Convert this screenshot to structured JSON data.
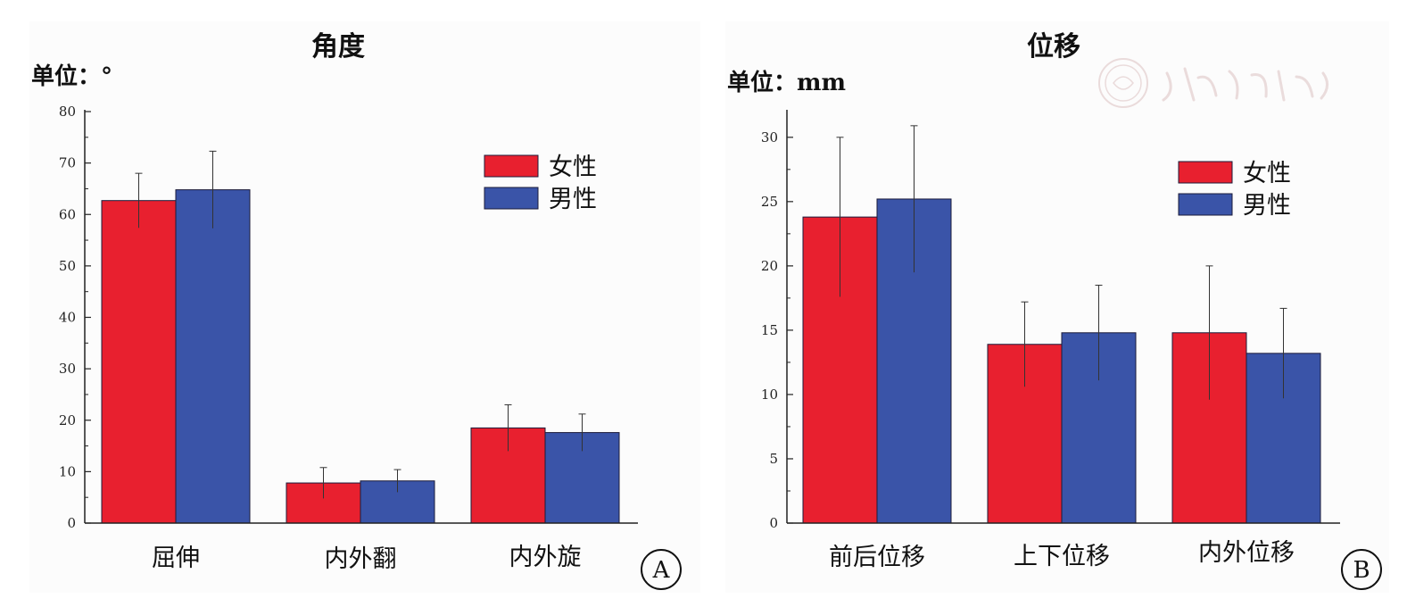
{
  "colors": {
    "female": "#e8202f",
    "male": "#3a54a8",
    "axis": "#222222"
  },
  "chart_data": [
    {
      "type": "bar",
      "title": "角度",
      "unit_label": "单位：°",
      "panel_letter": "A",
      "categories": [
        "屈伸",
        "内外翻",
        "内外旋"
      ],
      "ylim": [
        0,
        80
      ],
      "yticks": [
        0,
        10,
        20,
        30,
        40,
        50,
        60,
        70,
        80
      ],
      "legend_position": "top-right",
      "grid": false,
      "series": [
        {
          "name": "女性",
          "color": "#e8202f",
          "values": [
            62.7,
            7.8,
            18.5
          ],
          "errors": [
            5.3,
            3.0,
            4.5
          ]
        },
        {
          "name": "男性",
          "color": "#3a54a8",
          "values": [
            64.8,
            8.2,
            17.6
          ],
          "errors": [
            7.5,
            2.2,
            3.6
          ]
        }
      ]
    },
    {
      "type": "bar",
      "title": "位移",
      "unit_label": "单位：mm",
      "panel_letter": "B",
      "categories": [
        "前后位移",
        "上下位移",
        "内外位移"
      ],
      "ylim": [
        0,
        32
      ],
      "yticks": [
        0,
        5,
        10,
        15,
        20,
        25,
        30
      ],
      "legend_position": "top-right",
      "grid": false,
      "series": [
        {
          "name": "女性",
          "color": "#e8202f",
          "values": [
            23.8,
            13.9,
            14.8
          ],
          "errors": [
            6.2,
            3.3,
            5.2
          ]
        },
        {
          "name": "男性",
          "color": "#3a54a8",
          "values": [
            25.2,
            14.8,
            13.2
          ],
          "errors": [
            5.7,
            3.7,
            3.5
          ]
        }
      ]
    }
  ]
}
